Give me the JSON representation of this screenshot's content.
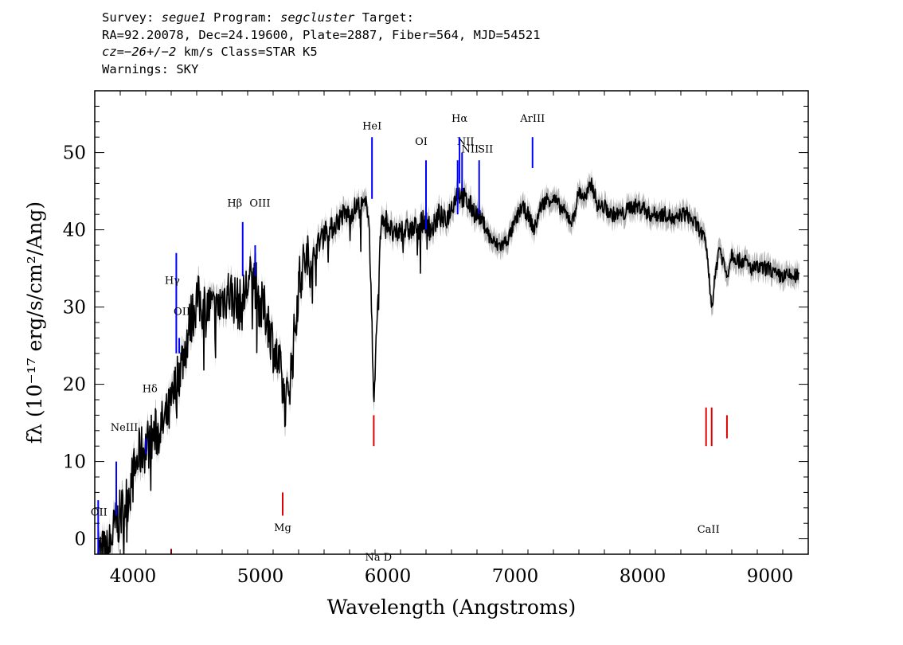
{
  "header": {
    "line1": {
      "survey_label": "Survey:",
      "survey": "segue1",
      "program_label": "Program:",
      "program": "segcluster",
      "target_label": "Target:"
    },
    "line2": "RA=92.20078, Dec=24.19600, Plate=2887, Fiber=564, MJD=54521",
    "line3": {
      "cz_label": "cz=",
      "cz_value": "−26",
      "cz_sep": "+/−",
      "cz_err": "2",
      "cz_unit": "km/s",
      "class_text": "Class=STAR K5"
    },
    "line4": "Warnings: SKY"
  },
  "chart_data": {
    "type": "line",
    "title": "",
    "xlabel": "Wavelength (Angstroms)",
    "ylabel": "fλ (10⁻¹⁷ erg/s/cm²/Ang)",
    "xlim": [
      3700,
      9300
    ],
    "ylim": [
      -2,
      58
    ],
    "xticks": [
      4000,
      5000,
      6000,
      7000,
      8000,
      9000
    ],
    "yticks": [
      0,
      10,
      20,
      30,
      40,
      50
    ],
    "colors": {
      "spectrum": "#000000",
      "error": "#b4b4b4",
      "emission_lines": "#0000ff",
      "absorption_lines": "#e00000",
      "text": "#000000"
    },
    "series": [
      {
        "wavelength": [
          3720,
          3760,
          3800,
          3850,
          3900,
          3950,
          4000,
          4050,
          4100,
          4150,
          4200,
          4250,
          4300,
          4350,
          4400,
          4450,
          4500,
          4550,
          4600,
          4650,
          4700,
          4750,
          4800,
          4850,
          4900,
          4950,
          5000,
          5050,
          5100,
          5150,
          5200,
          5250,
          5300,
          5350,
          5400,
          5450,
          5500,
          5550,
          5600,
          5650,
          5700,
          5750,
          5800,
          5850,
          5890,
          5950,
          6000,
          6050,
          6100,
          6150,
          6200,
          6250,
          6300,
          6350,
          6400,
          6450,
          6500,
          6550,
          6600,
          6650,
          6700,
          6750,
          6800,
          6850,
          6900,
          6950,
          7000,
          7050,
          7100,
          7150,
          7200,
          7250,
          7300,
          7350,
          7400,
          7450,
          7500,
          7550,
          7600,
          7650,
          7700,
          7750,
          7800,
          7850,
          7900,
          7950,
          8000,
          8050,
          8100,
          8150,
          8200,
          8250,
          8300,
          8350,
          8400,
          8450,
          8500,
          8542,
          8600,
          8662,
          8700,
          8750,
          8800,
          8850,
          8900,
          8950,
          9000,
          9050,
          9100,
          9150,
          9200,
          9230
        ],
        "flux": [
          -2,
          -2,
          -2,
          1,
          3,
          5,
          8,
          11,
          12,
          13,
          14,
          15,
          17,
          21,
          24,
          28,
          31,
          30,
          30,
          29,
          31,
          32,
          31,
          30,
          33,
          34,
          30,
          29,
          25,
          22,
          17,
          23,
          33,
          36,
          36,
          38,
          40,
          40,
          41,
          42,
          42,
          43,
          43,
          43,
          18,
          42,
          41,
          39,
          40,
          40,
          40,
          41,
          41,
          40,
          42,
          41,
          43,
          45,
          44,
          43,
          42,
          41,
          39,
          38,
          38,
          39,
          41,
          43,
          42,
          40,
          43,
          44,
          44,
          43,
          42,
          41,
          45,
          44,
          46,
          43,
          43,
          42,
          42,
          42,
          43,
          43,
          43,
          42,
          42,
          42,
          42,
          41,
          42,
          42,
          41,
          40,
          38,
          30,
          38,
          34,
          37,
          36,
          36,
          35,
          35,
          35,
          35,
          34,
          34,
          34,
          34,
          34
        ]
      }
    ],
    "line_labels": [
      {
        "label": "OII",
        "wavelength": 3727,
        "kind": "emission"
      },
      {
        "label": "NeIII",
        "wavelength": 3869,
        "kind": "emission"
      },
      {
        "label": "Hδ",
        "wavelength": 4102,
        "kind": "emission"
      },
      {
        "label": "Hγ",
        "wavelength": 4340,
        "kind": "emission"
      },
      {
        "label": "OIII",
        "wavelength": 4363,
        "kind": "emission"
      },
      {
        "label": "Hβ",
        "wavelength": 4861,
        "kind": "emission"
      },
      {
        "label": "OIII",
        "wavelength": 4959,
        "kind": "emission"
      },
      {
        "label": "HeI",
        "wavelength": 5876,
        "kind": "emission"
      },
      {
        "label": "OI",
        "wavelength": 6300,
        "kind": "emission"
      },
      {
        "label": "NII",
        "wavelength": 6548,
        "kind": "emission"
      },
      {
        "label": "Hα",
        "wavelength": 6563,
        "kind": "emission"
      },
      {
        "label": "NII",
        "wavelength": 6583,
        "kind": "emission"
      },
      {
        "label": "SII",
        "wavelength": 6717,
        "kind": "emission"
      },
      {
        "label": "ArIII",
        "wavelength": 7136,
        "kind": "emission"
      },
      {
        "label": "Mg",
        "wavelength": 5175,
        "kind": "absorption"
      },
      {
        "label": "Na D",
        "wavelength": 5890,
        "kind": "absorption"
      },
      {
        "label": "CaII",
        "wavelength": 8542,
        "kind": "absorption"
      }
    ]
  }
}
